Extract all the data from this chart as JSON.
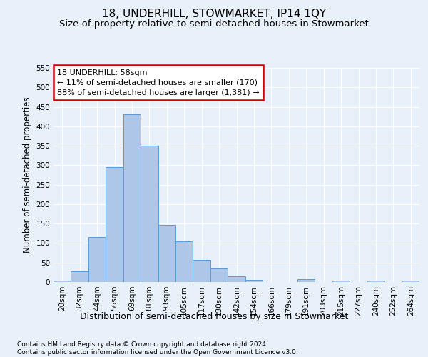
{
  "title": "18, UNDERHILL, STOWMARKET, IP14 1QY",
  "subtitle": "Size of property relative to semi-detached houses in Stowmarket",
  "xlabel": "Distribution of semi-detached houses by size in Stowmarket",
  "ylabel": "Number of semi-detached properties",
  "footer_line1": "Contains HM Land Registry data © Crown copyright and database right 2024.",
  "footer_line2": "Contains public sector information licensed under the Open Government Licence v3.0.",
  "bar_labels": [
    "20sqm",
    "32sqm",
    "44sqm",
    "56sqm",
    "69sqm",
    "81sqm",
    "93sqm",
    "105sqm",
    "117sqm",
    "130sqm",
    "142sqm",
    "154sqm",
    "166sqm",
    "179sqm",
    "191sqm",
    "203sqm",
    "215sqm",
    "227sqm",
    "240sqm",
    "252sqm",
    "264sqm"
  ],
  "bar_values": [
    3,
    28,
    115,
    295,
    430,
    350,
    147,
    104,
    57,
    35,
    14,
    5,
    0,
    0,
    7,
    0,
    4,
    0,
    3,
    0,
    3
  ],
  "bar_color": "#aec6e8",
  "bar_edge_color": "#5b9bd5",
  "annotation_text_line1": "18 UNDERHILL: 58sqm",
  "annotation_text_line2": "← 11% of semi-detached houses are smaller (170)",
  "annotation_text_line3": "88% of semi-detached houses are larger (1,381) →",
  "vline_index": 3,
  "ylim": [
    0,
    550
  ],
  "yticks": [
    0,
    50,
    100,
    150,
    200,
    250,
    300,
    350,
    400,
    450,
    500,
    550
  ],
  "bg_color": "#e8f0fa",
  "grid_color": "#ffffff",
  "title_fontsize": 11,
  "subtitle_fontsize": 9.5,
  "ylabel_fontsize": 8.5,
  "xlabel_fontsize": 9,
  "tick_fontsize": 7.5,
  "footer_fontsize": 6.5,
  "annot_fontsize": 8
}
